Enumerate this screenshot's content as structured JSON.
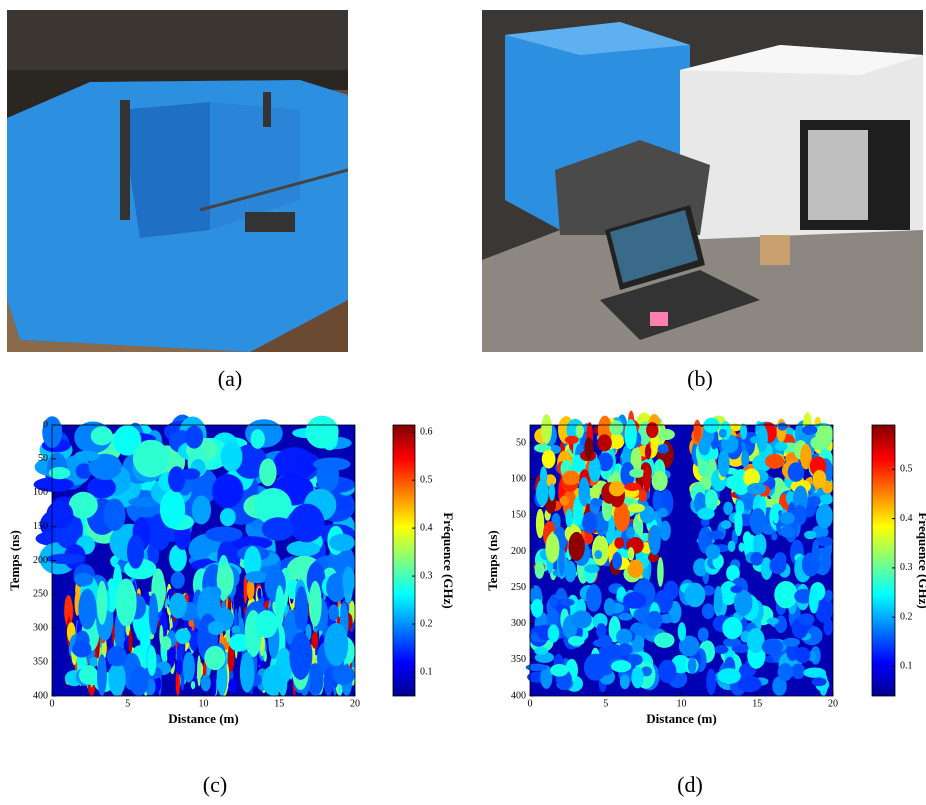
{
  "captions": [
    "(a)",
    "(b)",
    "(c)",
    "(d)"
  ],
  "chart_data": [
    {
      "type": "heatmap",
      "x_label": "Distance (m)",
      "y_label": "Temps (ns)",
      "colorbar_label": "Fréquence (GHz)",
      "xlim": [
        0,
        20
      ],
      "xticks": [
        0,
        5,
        10,
        15,
        20
      ],
      "ylim": [
        0,
        400
      ],
      "yticks": [
        0,
        50,
        100,
        150,
        200,
        250,
        300,
        350,
        400
      ],
      "y_inverted": true,
      "clim": [
        0.05,
        0.615
      ],
      "cticks": [
        0.1,
        0.2,
        0.3,
        0.4,
        0.5,
        0.6
      ],
      "colormap": "jet"
    },
    {
      "type": "heatmap",
      "x_label": "Distance (m)",
      "y_label": "Temps (ns)",
      "colorbar_label": "Fréquence (GHz)",
      "xlim": [
        0,
        20
      ],
      "xticks": [
        0,
        5,
        10,
        15,
        20
      ],
      "ylim": [
        25,
        400
      ],
      "yticks": [
        50,
        100,
        150,
        200,
        250,
        300,
        350,
        400
      ],
      "y_inverted": true,
      "clim": [
        0.04,
        0.59
      ],
      "cticks": [
        0.1,
        0.2,
        0.3,
        0.4,
        0.5
      ],
      "colormap": "jet"
    }
  ]
}
